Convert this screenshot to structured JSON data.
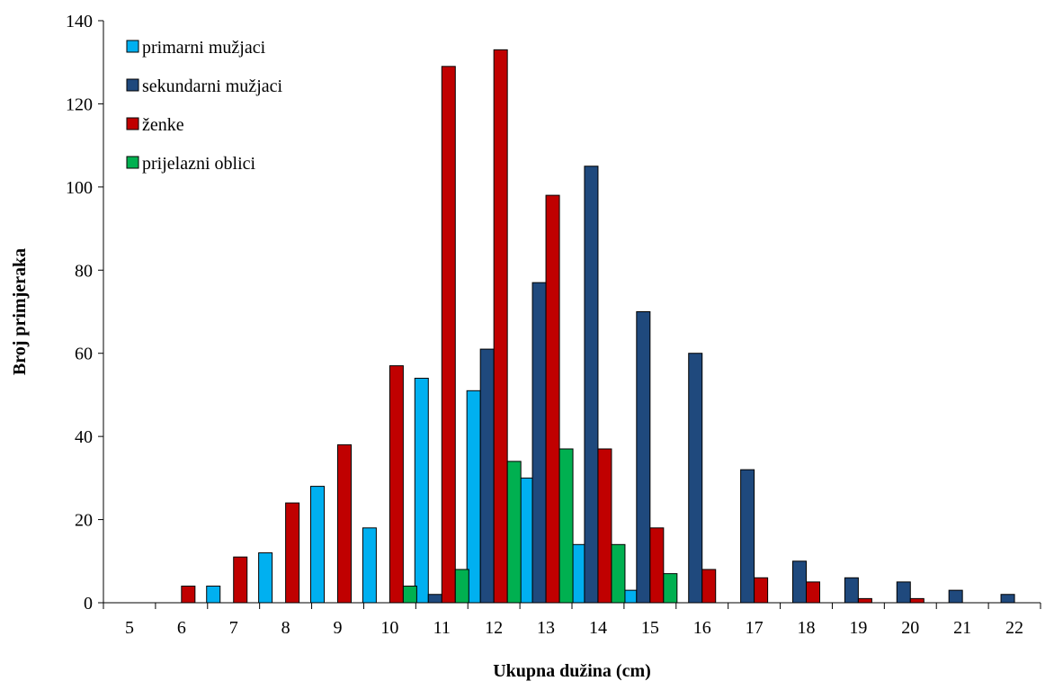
{
  "chart_data": {
    "type": "bar",
    "title": "",
    "xlabel": "Ukupna dužina (cm)",
    "ylabel": "Broj primjeraka",
    "ylim": [
      0,
      140
    ],
    "yticks": [
      0,
      20,
      40,
      60,
      80,
      100,
      120,
      140
    ],
    "grid": false,
    "legend_position": "top-left",
    "categories": [
      "5",
      "6",
      "7",
      "8",
      "9",
      "10",
      "11",
      "12",
      "13",
      "14",
      "15",
      "16",
      "17",
      "18",
      "19",
      "20",
      "21",
      "22"
    ],
    "series": [
      {
        "name": "primarni mužjaci",
        "color": "#00B0F0",
        "values": [
          0,
          0,
          4,
          12,
          28,
          18,
          54,
          51,
          30,
          14,
          3,
          0,
          0,
          0,
          0,
          0,
          0,
          0
        ]
      },
      {
        "name": "sekundarni mužjaci",
        "color": "#1F497D",
        "values": [
          0,
          0,
          0,
          0,
          0,
          0,
          2,
          61,
          77,
          105,
          70,
          60,
          32,
          10,
          6,
          5,
          3,
          2
        ]
      },
      {
        "name": "ženke",
        "color": "#C00000",
        "values": [
          0,
          4,
          11,
          24,
          38,
          57,
          129,
          133,
          98,
          37,
          18,
          8,
          6,
          5,
          1,
          1,
          0,
          0
        ]
      },
      {
        "name": "prijelazni oblici",
        "color": "#00B050",
        "values": [
          0,
          0,
          0,
          0,
          0,
          4,
          8,
          34,
          37,
          14,
          7,
          0,
          0,
          0,
          0,
          0,
          0,
          0
        ]
      }
    ]
  }
}
